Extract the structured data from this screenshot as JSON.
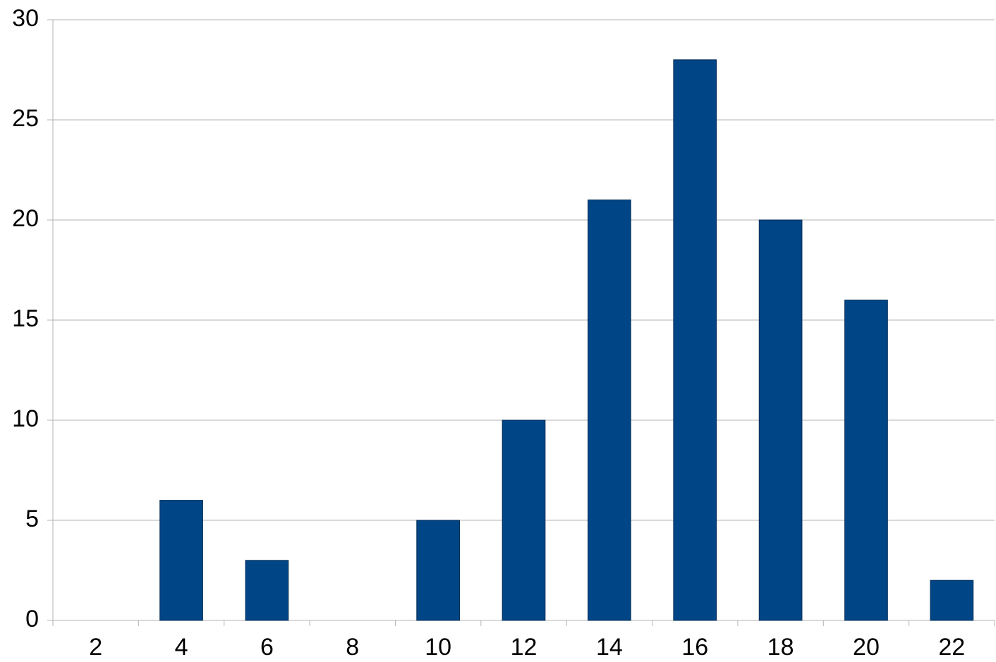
{
  "chart_data": {
    "type": "bar",
    "categories": [
      "2",
      "4",
      "6",
      "8",
      "10",
      "12",
      "14",
      "16",
      "18",
      "20",
      "22"
    ],
    "values": [
      0,
      6,
      3,
      0,
      5,
      10,
      21,
      28,
      20,
      16,
      2
    ],
    "color": "#004586",
    "ylim": [
      0,
      30
    ],
    "yticks": [
      0,
      5,
      10,
      15,
      20,
      25,
      30
    ],
    "grid": true
  }
}
